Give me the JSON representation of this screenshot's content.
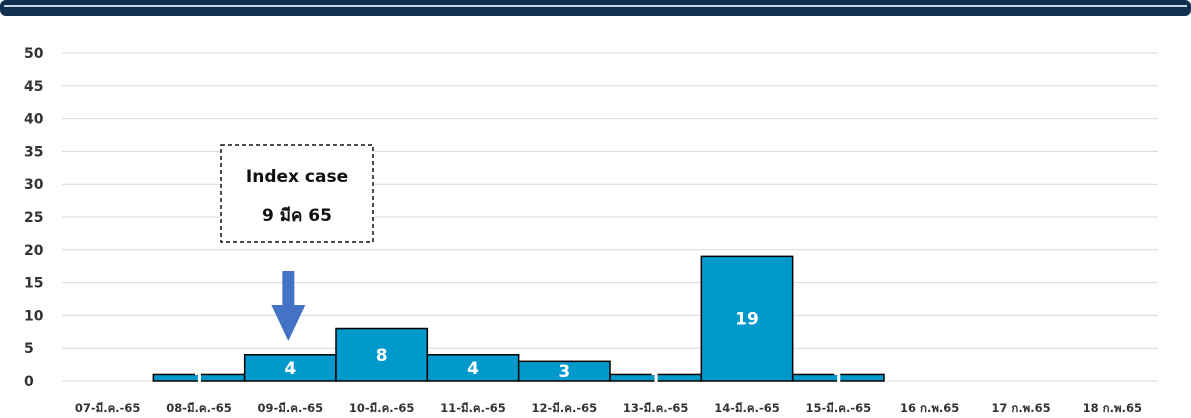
{
  "chart_data": {
    "type": "bar",
    "categories": [
      "07-มี.ค.-65",
      "08-มี.ค.-65",
      "09-มี.ค.-65",
      "10-มี.ค.-65",
      "11-มี.ค.-65",
      "12-มี.ค.-65",
      "13-มี.ค.-65",
      "14-มี.ค.-65",
      "15-มี.ค.-65",
      "16 ก.พ.65",
      "17 ก.พ.65",
      "18 ก.พ.65"
    ],
    "values": [
      0,
      1,
      4,
      8,
      4,
      3,
      1,
      19,
      1,
      0,
      0,
      0
    ],
    "data_labels": [
      "",
      "1",
      "4",
      "8",
      "4",
      "3",
      "1",
      "19",
      "1",
      "",
      "",
      ""
    ],
    "title": "",
    "xlabel": "",
    "ylabel": "",
    "ylim": [
      0,
      50
    ],
    "yticks": [
      0,
      5,
      10,
      15,
      20,
      25,
      30,
      35,
      40,
      45,
      50
    ],
    "grid": true,
    "legend": "none",
    "bar_color": "#0099cc",
    "bar_edge_color": "#000000",
    "header_bar_color": "#0f3050",
    "annotation": {
      "line1": "Index case",
      "line2": "9 มีค 65",
      "arrow_color": "#4472c4",
      "points_to_category": "09-มี.ค.-65"
    }
  }
}
